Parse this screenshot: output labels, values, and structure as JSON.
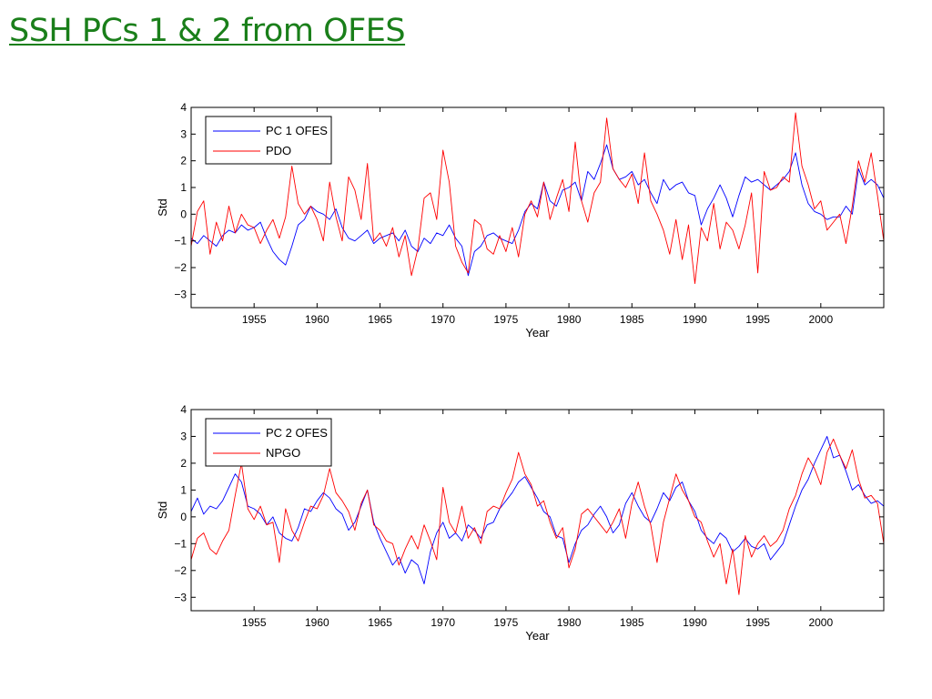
{
  "slide": {
    "title": "SSH PCs 1 & 2 from OFES",
    "title_color": "#1a7f1a"
  },
  "chart_data": [
    {
      "type": "line",
      "xlabel": "Year",
      "ylabel": "Std",
      "xlim": [
        1950,
        2005
      ],
      "ylim": [
        -3.5,
        4
      ],
      "xticks": [
        1955,
        1960,
        1965,
        1970,
        1975,
        1980,
        1985,
        1990,
        1995,
        2000
      ],
      "yticks": [
        -3,
        -2,
        -1,
        0,
        1,
        2,
        3,
        4
      ],
      "grid": false,
      "legend_position": "top-left",
      "series": [
        {
          "name": "PC 1 OFES",
          "color": "#0000ff",
          "x": [
            1950.0,
            1950.5,
            1951.0,
            1951.5,
            1952.0,
            1952.5,
            1953.0,
            1953.5,
            1954.0,
            1954.5,
            1955.0,
            1955.5,
            1956.0,
            1956.5,
            1957.0,
            1957.5,
            1958.0,
            1958.5,
            1959.0,
            1959.5,
            1960.0,
            1960.5,
            1961.0,
            1961.5,
            1962.0,
            1962.5,
            1963.0,
            1963.5,
            1964.0,
            1964.5,
            1965.0,
            1965.5,
            1966.0,
            1966.5,
            1967.0,
            1967.5,
            1968.0,
            1968.5,
            1969.0,
            1969.5,
            1970.0,
            1970.5,
            1971.0,
            1971.5,
            1972.0,
            1972.5,
            1973.0,
            1973.5,
            1974.0,
            1974.5,
            1975.0,
            1975.5,
            1976.0,
            1976.5,
            1977.0,
            1977.5,
            1978.0,
            1978.5,
            1979.0,
            1979.5,
            1980.0,
            1980.5,
            1981.0,
            1981.5,
            1982.0,
            1982.5,
            1983.0,
            1983.5,
            1984.0,
            1984.5,
            1985.0,
            1985.5,
            1986.0,
            1986.5,
            1987.0,
            1987.5,
            1988.0,
            1988.5,
            1989.0,
            1989.5,
            1990.0,
            1990.5,
            1991.0,
            1991.5,
            1992.0,
            1992.5,
            1993.0,
            1993.5,
            1994.0,
            1994.5,
            1995.0,
            1995.5,
            1996.0,
            1996.5,
            1997.0,
            1997.5,
            1998.0,
            1998.5,
            1999.0,
            1999.5,
            2000.0,
            2000.5,
            2001.0,
            2001.5,
            2002.0,
            2002.5,
            2003.0,
            2003.5,
            2004.0,
            2004.5,
            2005.0
          ],
          "values": [
            -0.9,
            -1.1,
            -0.8,
            -1.0,
            -1.2,
            -0.8,
            -0.6,
            -0.7,
            -0.4,
            -0.6,
            -0.5,
            -0.3,
            -0.9,
            -1.4,
            -1.7,
            -1.9,
            -1.2,
            -0.4,
            -0.2,
            0.3,
            0.1,
            0.0,
            -0.2,
            0.2,
            -0.5,
            -0.9,
            -1.0,
            -0.8,
            -0.6,
            -1.1,
            -0.9,
            -0.8,
            -0.7,
            -1.0,
            -0.6,
            -1.2,
            -1.4,
            -0.9,
            -1.1,
            -0.7,
            -0.8,
            -0.4,
            -0.9,
            -1.2,
            -2.3,
            -1.4,
            -1.2,
            -0.8,
            -0.7,
            -0.9,
            -1.0,
            -1.1,
            -0.6,
            0.1,
            0.4,
            0.2,
            1.2,
            0.5,
            0.3,
            0.9,
            1.0,
            1.2,
            0.5,
            1.6,
            1.3,
            1.9,
            2.6,
            1.7,
            1.3,
            1.4,
            1.6,
            1.1,
            1.3,
            0.8,
            0.4,
            1.3,
            0.9,
            1.1,
            1.2,
            0.8,
            0.7,
            -0.4,
            0.2,
            0.6,
            1.1,
            0.6,
            -0.1,
            0.7,
            1.4,
            1.2,
            1.3,
            1.1,
            0.9,
            1.1,
            1.3,
            1.6,
            2.3,
            1.1,
            0.4,
            0.1,
            0.0,
            -0.2,
            -0.1,
            -0.1,
            0.3,
            0.0,
            1.7,
            1.1,
            1.3,
            1.1,
            0.6
          ]
        },
        {
          "name": "PDO",
          "color": "#ff0000",
          "x": [
            1950.0,
            1950.5,
            1951.0,
            1951.5,
            1952.0,
            1952.5,
            1953.0,
            1953.5,
            1954.0,
            1954.5,
            1955.0,
            1955.5,
            1956.0,
            1956.5,
            1957.0,
            1957.5,
            1958.0,
            1958.5,
            1959.0,
            1959.5,
            1960.0,
            1960.5,
            1961.0,
            1961.5,
            1962.0,
            1962.5,
            1963.0,
            1963.5,
            1964.0,
            1964.5,
            1965.0,
            1965.5,
            1966.0,
            1966.5,
            1967.0,
            1967.5,
            1968.0,
            1968.5,
            1969.0,
            1969.5,
            1970.0,
            1970.5,
            1971.0,
            1971.5,
            1972.0,
            1972.5,
            1973.0,
            1973.5,
            1974.0,
            1974.5,
            1975.0,
            1975.5,
            1976.0,
            1976.5,
            1977.0,
            1977.5,
            1978.0,
            1978.5,
            1979.0,
            1979.5,
            1980.0,
            1980.5,
            1981.0,
            1981.5,
            1982.0,
            1982.5,
            1983.0,
            1983.5,
            1984.0,
            1984.5,
            1985.0,
            1985.5,
            1986.0,
            1986.5,
            1987.0,
            1987.5,
            1988.0,
            1988.5,
            1989.0,
            1989.5,
            1990.0,
            1990.5,
            1991.0,
            1991.5,
            1992.0,
            1992.5,
            1993.0,
            1993.5,
            1994.0,
            1994.5,
            1995.0,
            1995.5,
            1996.0,
            1996.5,
            1997.0,
            1997.5,
            1998.0,
            1998.5,
            1999.0,
            1999.5,
            2000.0,
            2000.5,
            2001.0,
            2001.5,
            2002.0,
            2002.5,
            2003.0,
            2003.5,
            2004.0,
            2004.5,
            2005.0
          ],
          "values": [
            -1.2,
            0.1,
            0.5,
            -1.5,
            -0.3,
            -1.0,
            0.3,
            -0.7,
            0.0,
            -0.4,
            -0.5,
            -1.1,
            -0.6,
            -0.2,
            -0.9,
            -0.1,
            1.8,
            0.4,
            0.0,
            0.3,
            -0.2,
            -1.0,
            1.2,
            -0.1,
            -1.0,
            1.4,
            0.9,
            -0.2,
            1.9,
            -1.0,
            -0.7,
            -1.2,
            -0.5,
            -1.6,
            -0.8,
            -2.3,
            -1.3,
            0.6,
            0.8,
            -0.2,
            2.4,
            1.2,
            -1.2,
            -1.8,
            -2.2,
            -0.2,
            -0.4,
            -1.3,
            -1.5,
            -0.8,
            -1.4,
            -0.5,
            -1.6,
            0.0,
            0.5,
            -0.1,
            1.2,
            -0.2,
            0.6,
            1.3,
            0.1,
            2.7,
            0.5,
            -0.3,
            0.8,
            1.2,
            3.6,
            1.7,
            1.3,
            1.0,
            1.5,
            0.4,
            2.3,
            0.5,
            0.0,
            -0.6,
            -1.5,
            -0.2,
            -1.7,
            -0.4,
            -2.6,
            -0.5,
            -1.0,
            0.4,
            -1.3,
            -0.3,
            -0.6,
            -1.3,
            -0.4,
            0.8,
            -2.2,
            1.6,
            0.9,
            1.0,
            1.4,
            1.2,
            3.8,
            1.8,
            1.1,
            0.2,
            0.5,
            -0.6,
            -0.3,
            0.0,
            -1.1,
            0.3,
            2.0,
            1.2,
            2.3,
            0.7,
            -1.0
          ]
        }
      ]
    },
    {
      "type": "line",
      "xlabel": "Year",
      "ylabel": "Std",
      "xlim": [
        1950,
        2005
      ],
      "ylim": [
        -3.5,
        4
      ],
      "xticks": [
        1955,
        1960,
        1965,
        1970,
        1975,
        1980,
        1985,
        1990,
        1995,
        2000
      ],
      "yticks": [
        -3,
        -2,
        -1,
        0,
        1,
        2,
        3,
        4
      ],
      "grid": false,
      "legend_position": "top-left",
      "series": [
        {
          "name": "PC 2 OFES",
          "color": "#0000ff",
          "x": [
            1950.0,
            1950.5,
            1951.0,
            1951.5,
            1952.0,
            1952.5,
            1953.0,
            1953.5,
            1954.0,
            1954.5,
            1955.0,
            1955.5,
            1956.0,
            1956.5,
            1957.0,
            1957.5,
            1958.0,
            1958.5,
            1959.0,
            1959.5,
            1960.0,
            1960.5,
            1961.0,
            1961.5,
            1962.0,
            1962.5,
            1963.0,
            1963.5,
            1964.0,
            1964.5,
            1965.0,
            1965.5,
            1966.0,
            1966.5,
            1967.0,
            1967.5,
            1968.0,
            1968.5,
            1969.0,
            1969.5,
            1970.0,
            1970.5,
            1971.0,
            1971.5,
            1972.0,
            1972.5,
            1973.0,
            1973.5,
            1974.0,
            1974.5,
            1975.0,
            1975.5,
            1976.0,
            1976.5,
            1977.0,
            1977.5,
            1978.0,
            1978.5,
            1979.0,
            1979.5,
            1980.0,
            1980.5,
            1981.0,
            1981.5,
            1982.0,
            1982.5,
            1983.0,
            1983.5,
            1984.0,
            1984.5,
            1985.0,
            1985.5,
            1986.0,
            1986.5,
            1987.0,
            1987.5,
            1988.0,
            1988.5,
            1989.0,
            1989.5,
            1990.0,
            1990.5,
            1991.0,
            1991.5,
            1992.0,
            1992.5,
            1993.0,
            1993.5,
            1994.0,
            1994.5,
            1995.0,
            1995.5,
            1996.0,
            1996.5,
            1997.0,
            1997.5,
            1998.0,
            1998.5,
            1999.0,
            1999.5,
            2000.0,
            2000.5,
            2001.0,
            2001.5,
            2002.0,
            2002.5,
            2003.0,
            2003.5,
            2004.0,
            2004.5,
            2005.0
          ],
          "values": [
            0.2,
            0.7,
            0.1,
            0.4,
            0.3,
            0.6,
            1.1,
            1.6,
            1.3,
            0.4,
            0.3,
            0.1,
            -0.3,
            0.0,
            -0.6,
            -0.8,
            -0.9,
            -0.4,
            0.3,
            0.2,
            0.6,
            0.9,
            0.7,
            0.3,
            0.1,
            -0.5,
            -0.2,
            0.4,
            1.0,
            -0.2,
            -0.8,
            -1.3,
            -1.8,
            -1.5,
            -2.1,
            -1.6,
            -1.8,
            -2.5,
            -1.3,
            -0.6,
            -0.2,
            -0.8,
            -0.6,
            -0.9,
            -0.3,
            -0.5,
            -0.8,
            -0.3,
            -0.2,
            0.3,
            0.6,
            0.9,
            1.3,
            1.5,
            1.1,
            0.7,
            0.2,
            0.0,
            -0.7,
            -0.8,
            -1.7,
            -1.0,
            -0.5,
            -0.3,
            0.1,
            0.4,
            0.0,
            -0.6,
            -0.3,
            0.5,
            0.9,
            0.4,
            0.0,
            -0.2,
            0.3,
            0.9,
            0.6,
            1.1,
            1.3,
            0.6,
            0.2,
            -0.5,
            -0.8,
            -1.0,
            -0.6,
            -0.8,
            -1.3,
            -1.1,
            -0.8,
            -1.1,
            -1.2,
            -1.0,
            -1.6,
            -1.3,
            -1.0,
            -0.3,
            0.4,
            1.0,
            1.4,
            2.0,
            2.5,
            3.0,
            2.2,
            2.3,
            1.7,
            1.0,
            1.2,
            0.8,
            0.5,
            0.6,
            0.4
          ]
        },
        {
          "name": "NPGO",
          "color": "#ff0000",
          "x": [
            1950.0,
            1950.5,
            1951.0,
            1951.5,
            1952.0,
            1952.5,
            1953.0,
            1953.5,
            1954.0,
            1954.5,
            1955.0,
            1955.5,
            1956.0,
            1956.5,
            1957.0,
            1957.5,
            1958.0,
            1958.5,
            1959.0,
            1959.5,
            1960.0,
            1960.5,
            1961.0,
            1961.5,
            1962.0,
            1962.5,
            1963.0,
            1963.5,
            1964.0,
            1964.5,
            1965.0,
            1965.5,
            1966.0,
            1966.5,
            1967.0,
            1967.5,
            1968.0,
            1968.5,
            1969.0,
            1969.5,
            1970.0,
            1970.5,
            1971.0,
            1971.5,
            1972.0,
            1972.5,
            1973.0,
            1973.5,
            1974.0,
            1974.5,
            1975.0,
            1975.5,
            1976.0,
            1976.5,
            1977.0,
            1977.5,
            1978.0,
            1978.5,
            1979.0,
            1979.5,
            1980.0,
            1980.5,
            1981.0,
            1981.5,
            1982.0,
            1982.5,
            1983.0,
            1983.5,
            1984.0,
            1984.5,
            1985.0,
            1985.5,
            1986.0,
            1986.5,
            1987.0,
            1987.5,
            1988.0,
            1988.5,
            1989.0,
            1989.5,
            1990.0,
            1990.5,
            1991.0,
            1991.5,
            1992.0,
            1992.5,
            1993.0,
            1993.5,
            1994.0,
            1994.5,
            1995.0,
            1995.5,
            1996.0,
            1996.5,
            1997.0,
            1997.5,
            1998.0,
            1998.5,
            1999.0,
            1999.5,
            2000.0,
            2000.5,
            2001.0,
            2001.5,
            2002.0,
            2002.5,
            2003.0,
            2003.5,
            2004.0,
            2004.5,
            2005.0
          ],
          "values": [
            -1.6,
            -0.8,
            -0.6,
            -1.2,
            -1.4,
            -0.9,
            -0.5,
            0.8,
            2.0,
            0.3,
            -0.1,
            0.4,
            -0.3,
            -0.2,
            -1.7,
            0.3,
            -0.5,
            -0.9,
            -0.2,
            0.4,
            0.3,
            0.8,
            1.8,
            0.9,
            0.6,
            0.2,
            -0.5,
            0.5,
            1.0,
            -0.3,
            -0.5,
            -0.9,
            -1.0,
            -1.8,
            -1.2,
            -0.7,
            -1.2,
            -0.3,
            -0.9,
            -1.6,
            1.1,
            -0.2,
            -0.6,
            0.4,
            -0.8,
            -0.4,
            -1.0,
            0.2,
            0.4,
            0.3,
            0.9,
            1.4,
            2.4,
            1.6,
            1.2,
            0.4,
            0.6,
            -0.2,
            -0.8,
            -0.4,
            -1.9,
            -1.2,
            0.1,
            0.3,
            0.0,
            -0.3,
            -0.6,
            -0.2,
            0.3,
            -0.8,
            0.5,
            1.3,
            0.4,
            -0.3,
            -1.7,
            -0.2,
            0.7,
            1.6,
            1.0,
            0.6,
            0.0,
            -0.2,
            -0.9,
            -1.5,
            -1.0,
            -2.5,
            -1.2,
            -2.9,
            -0.7,
            -1.5,
            -1.0,
            -0.7,
            -1.1,
            -0.9,
            -0.5,
            0.3,
            0.8,
            1.6,
            2.2,
            1.8,
            1.2,
            2.4,
            2.9,
            2.3,
            1.8,
            2.5,
            1.4,
            0.7,
            0.8,
            0.5,
            -1.0
          ]
        }
      ]
    }
  ]
}
